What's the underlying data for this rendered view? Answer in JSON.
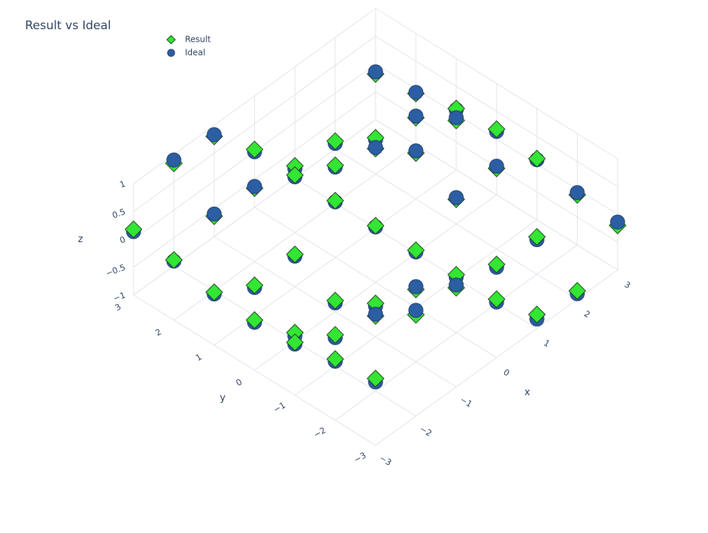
{
  "chart_data": {
    "type": "scatter3d",
    "title": "Result vs Ideal",
    "x_label": "x",
    "y_label": "y",
    "z_label": "z",
    "x": [
      -3,
      -2,
      -1,
      0,
      1,
      2,
      3
    ],
    "y": [
      -3,
      -2,
      -1,
      0,
      1,
      2,
      3
    ],
    "xlim": [
      -3,
      3
    ],
    "ylim": [
      -3,
      3
    ],
    "zlim": [
      -1,
      1
    ],
    "xticks": [
      {
        "value": -3,
        "label": "−3"
      },
      {
        "value": -2,
        "label": "−2"
      },
      {
        "value": -1,
        "label": "−1"
      },
      0,
      1,
      2,
      3
    ],
    "yticks": [
      {
        "value": -3,
        "label": "−3"
      },
      {
        "value": -2,
        "label": "−2"
      },
      {
        "value": -1,
        "label": "−1"
      },
      0,
      1,
      2,
      3
    ],
    "zticks": [
      {
        "value": -1,
        "label": "−1"
      },
      {
        "value": -0.5,
        "label": "−0.5"
      },
      0,
      0.5,
      1
    ],
    "grid": true,
    "series": [
      {
        "name": "Result",
        "color": "#33e633",
        "symbol": "diamond",
        "z": [
          [
            0.2,
            0.82,
            0.78,
            0.05,
            -0.75,
            -0.85,
            -0.2
          ],
          [
            0.1,
            0.35,
            0.3,
            0.04,
            -0.3,
            -0.33,
            -0.1
          ],
          [
            -0.05,
            -0.44,
            -0.4,
            0.03,
            0.42,
            0.45,
            0.1
          ],
          [
            -0.1,
            -0.85,
            -0.8,
            0.02,
            0.8,
            0.86,
            0.18
          ],
          [
            -0.05,
            -0.45,
            -0.42,
            0.02,
            0.43,
            0.46,
            0.1
          ],
          [
            0.08,
            0.34,
            0.32,
            0.03,
            -0.32,
            -0.35,
            -0.08
          ],
          [
            0.18,
            0.84,
            0.8,
            0.04,
            -0.78,
            -0.86,
            -0.18
          ]
        ]
      },
      {
        "name": "Ideal",
        "color": "#2c5ea3",
        "symbol": "circle",
        "z": [
          [
            0.14,
            0.9,
            0.83,
            0,
            -0.83,
            -0.9,
            -0.14
          ],
          [
            0.06,
            0.38,
            0.35,
            0,
            -0.35,
            -0.38,
            -0.06
          ],
          [
            -0.08,
            -0.49,
            -0.45,
            0,
            0.45,
            0.49,
            0.08
          ],
          [
            -0.14,
            -0.91,
            -0.84,
            0,
            0.84,
            0.91,
            0.14
          ],
          [
            -0.08,
            -0.49,
            -0.45,
            0,
            0.45,
            0.49,
            0.08
          ],
          [
            0.06,
            0.38,
            0.35,
            0,
            -0.35,
            -0.38,
            -0.06
          ],
          [
            0.14,
            0.9,
            0.83,
            0,
            -0.83,
            -0.9,
            -0.14
          ]
        ]
      }
    ]
  }
}
